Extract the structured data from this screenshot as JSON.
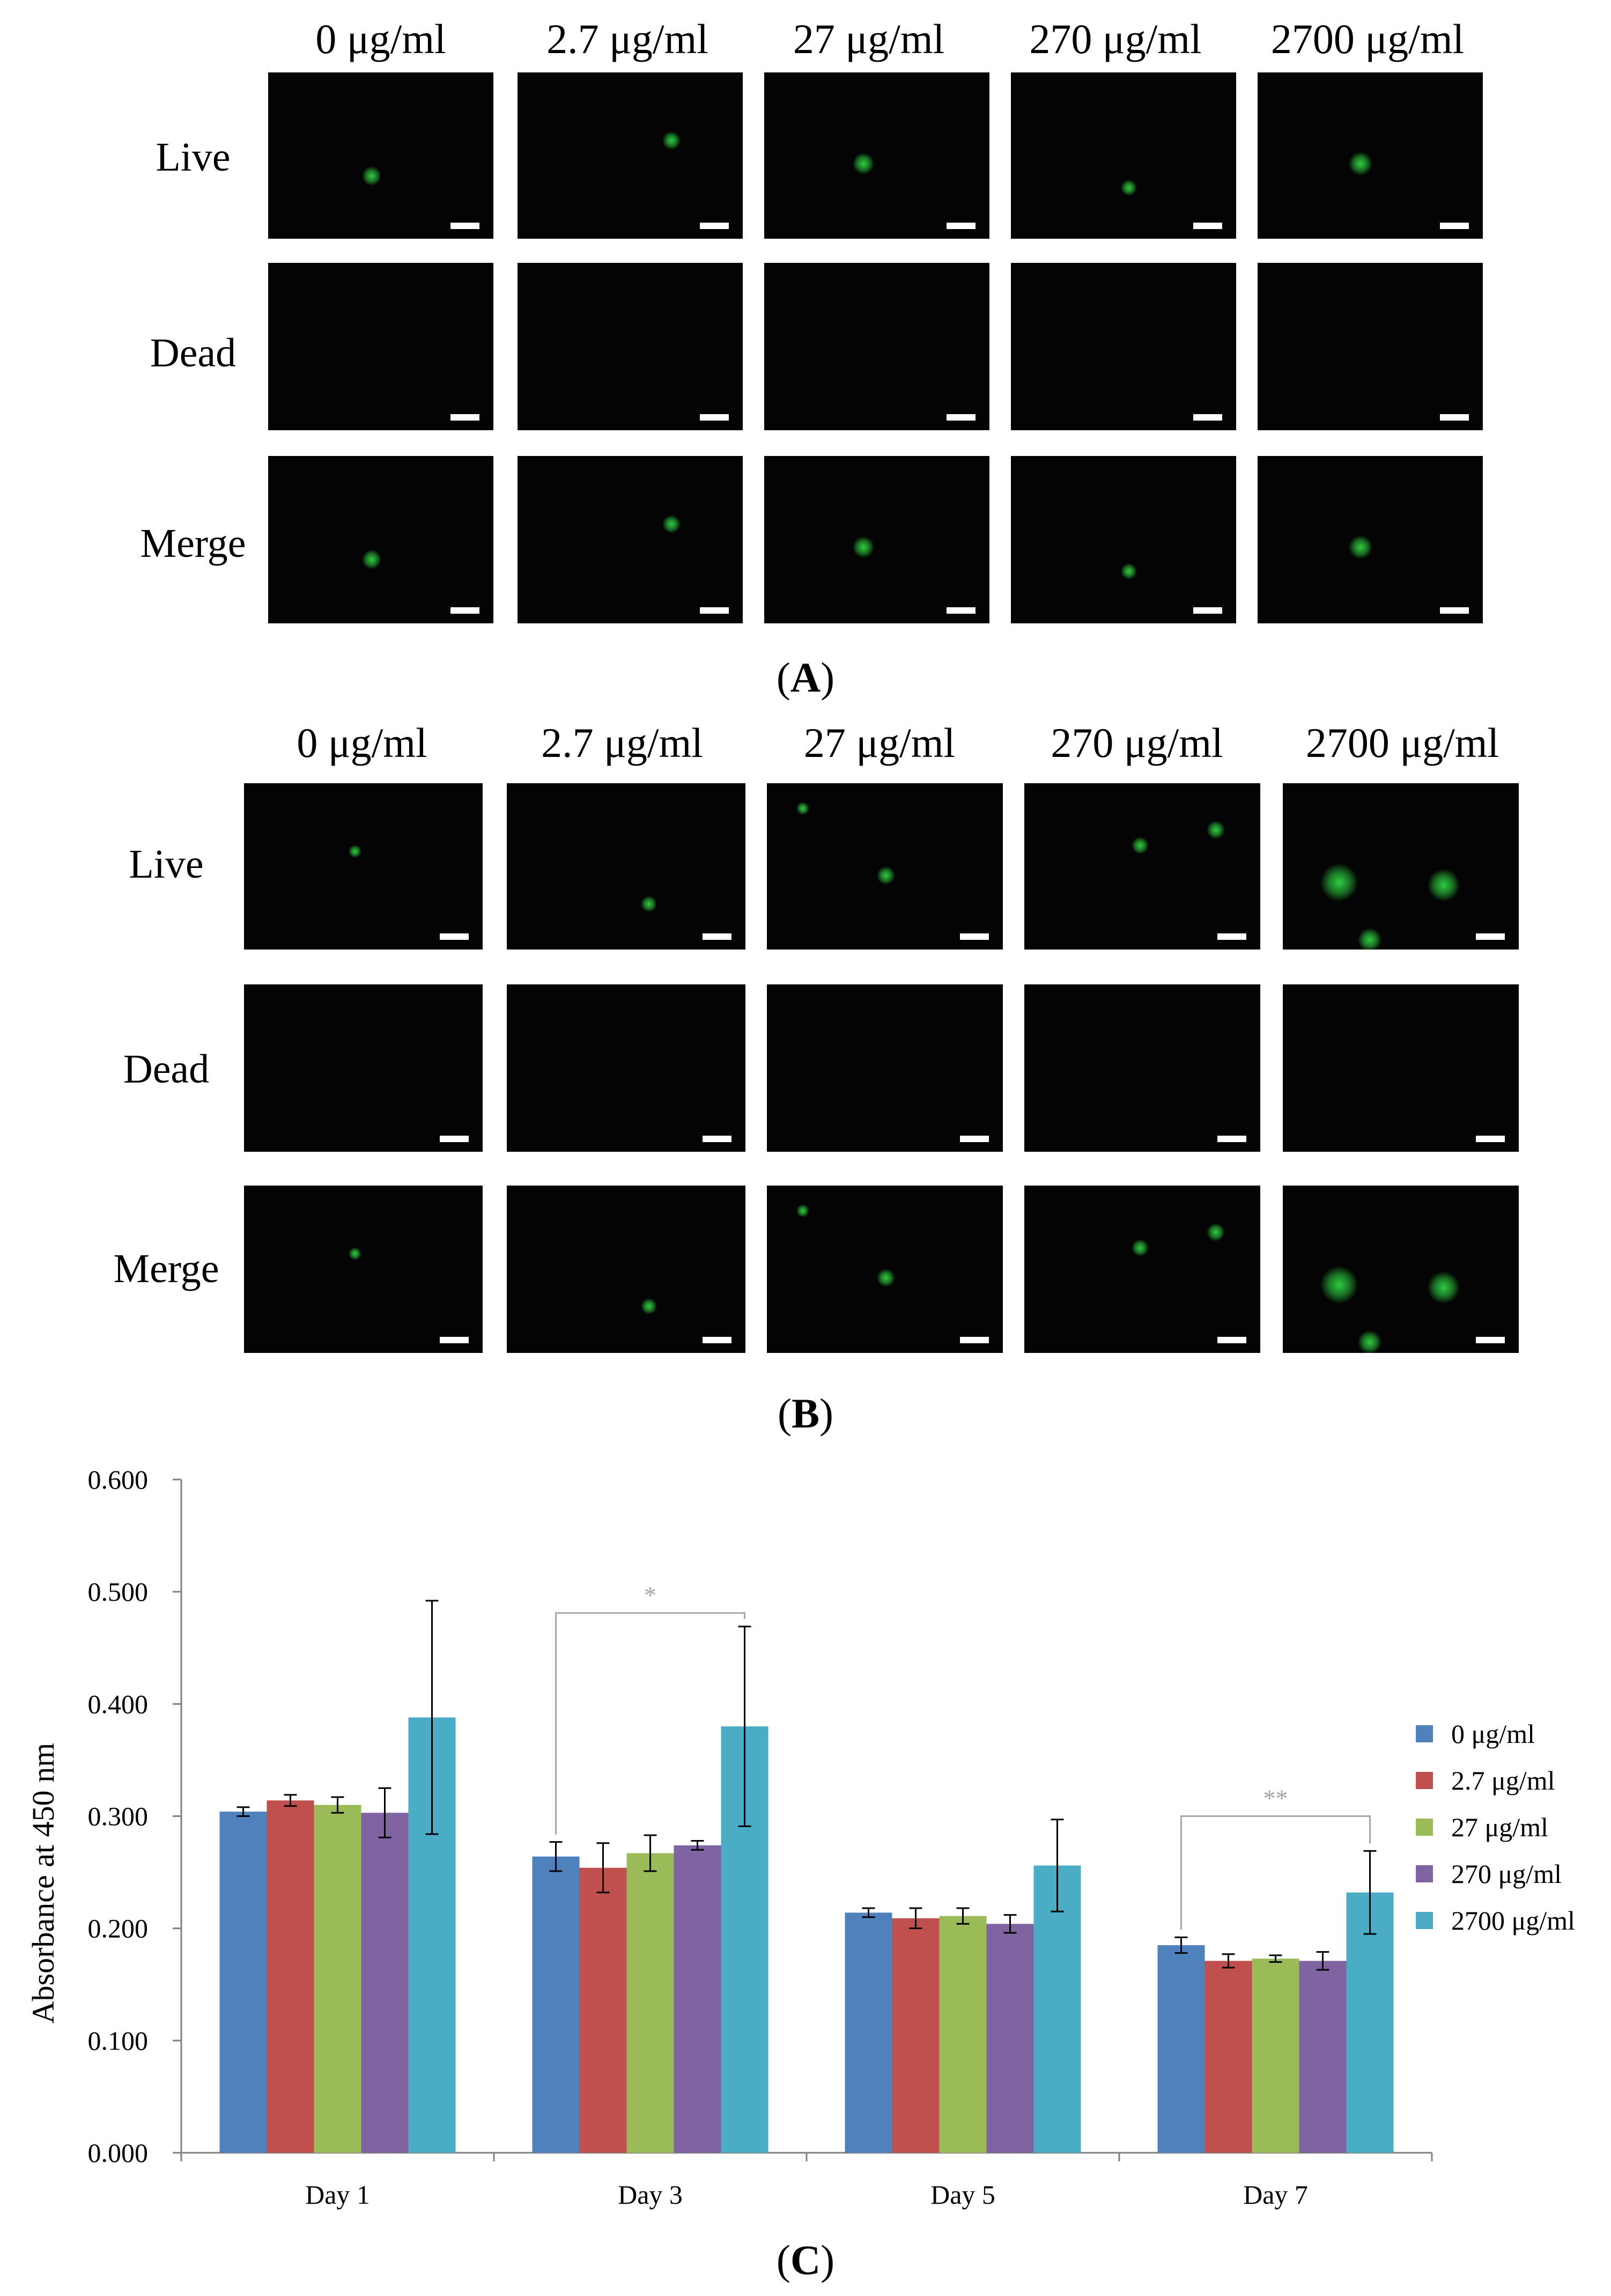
{
  "panel_a": {
    "label": "A",
    "concentrations": [
      "0 μg/ml",
      "2.7 μg/ml",
      "27 μg/ml",
      "270 μg/ml",
      "2700 μg/ml"
    ],
    "rows": [
      "Live",
      "Dead",
      "Merge"
    ]
  },
  "panel_b": {
    "label": "B",
    "concentrations": [
      "0 μg/ml",
      "2.7 μg/ml",
      "27 μg/ml",
      "270 μg/ml",
      "2700 μg/ml"
    ],
    "rows": [
      "Live",
      "Dead",
      "Merge"
    ]
  },
  "panel_c": {
    "label": "C"
  },
  "colors": {
    "series": [
      "#4F81BD",
      "#C0504D",
      "#9BBB59",
      "#8064A2",
      "#4BACC6"
    ],
    "fluorescence": "#2ecc40",
    "micrograph_bg": "#030403"
  },
  "chart_data": {
    "type": "bar",
    "title": "",
    "xlabel": "",
    "ylabel": "Absorbance at 450 nm",
    "ylim": [
      0,
      0.6
    ],
    "yticks": [
      "0.000",
      "0.100",
      "0.200",
      "0.300",
      "0.400",
      "0.500",
      "0.600"
    ],
    "categories": [
      "Day 1",
      "Day 3",
      "Day 5",
      "Day 7"
    ],
    "series": [
      {
        "name": "0 μg/ml",
        "values": [
          0.304,
          0.264,
          0.214,
          0.185
        ],
        "errors": [
          0.004,
          0.013,
          0.004,
          0.007
        ]
      },
      {
        "name": "2.7 μg/ml",
        "values": [
          0.314,
          0.254,
          0.209,
          0.171
        ],
        "errors": [
          0.005,
          0.022,
          0.009,
          0.006
        ]
      },
      {
        "name": "27 μg/ml",
        "values": [
          0.31,
          0.267,
          0.211,
          0.173
        ],
        "errors": [
          0.007,
          0.016,
          0.007,
          0.003
        ]
      },
      {
        "name": "270 μg/ml",
        "values": [
          0.303,
          0.274,
          0.204,
          0.171
        ],
        "errors": [
          0.022,
          0.004,
          0.008,
          0.008
        ]
      },
      {
        "name": "2700 μg/ml",
        "values": [
          0.388,
          0.38,
          0.256,
          0.232
        ],
        "errors": [
          0.104,
          0.089,
          0.041,
          0.037
        ]
      }
    ],
    "annotations": [
      {
        "text": "*",
        "category_index": 1,
        "from_series": 0,
        "to_series": 4,
        "level": 0.481
      },
      {
        "text": "**",
        "category_index": 3,
        "from_series": 0,
        "to_series": 4,
        "level": 0.3
      }
    ],
    "legend_position": "right"
  }
}
